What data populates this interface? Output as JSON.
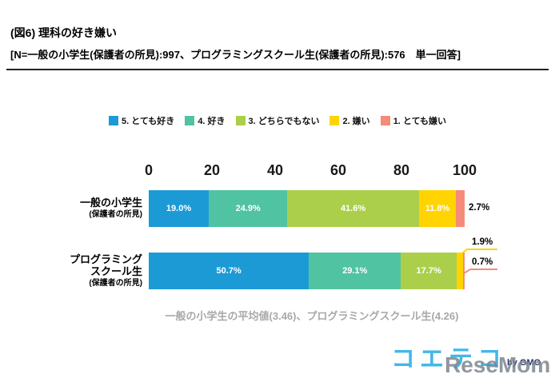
{
  "header": {
    "title": "(図6) 理科の好き嫌い",
    "subtitle": "[N=一般の小学生(保護者の所見):997、プログラミングスクール生(保護者の所見):576　単一回答]"
  },
  "legend": [
    {
      "label": "5. とても好き",
      "color": "#1C9AD6"
    },
    {
      "label": "4. 好き",
      "color": "#50C3A2"
    },
    {
      "label": "3. どちらでもない",
      "color": "#ABCF4A"
    },
    {
      "label": "2. 嫌い",
      "color": "#FFD400"
    },
    {
      "label": "1. とても嫌い",
      "color": "#F58B78"
    }
  ],
  "chart_data": {
    "type": "bar",
    "variant": "horizontal-stacked",
    "unit": "%",
    "x_ticks": [
      0,
      20,
      40,
      60,
      80,
      100
    ],
    "xlim": [
      0,
      100
    ],
    "series": [
      "5. とても好き",
      "4. 好き",
      "3. どちらでもない",
      "2. 嫌い",
      "1. とても嫌い"
    ],
    "colors": [
      "#1C9AD6",
      "#50C3A2",
      "#ABCF4A",
      "#FFD400",
      "#F58B78"
    ],
    "rows": [
      {
        "name": "一般の小学生",
        "sub": "(保護者の所見)",
        "values": [
          19.0,
          24.9,
          41.6,
          11.8,
          2.7
        ],
        "label_inside": [
          true,
          true,
          true,
          true,
          false
        ]
      },
      {
        "name": "プログラミング\nスクール生",
        "sub": "(保護者の所見)",
        "values": [
          50.7,
          29.1,
          17.7,
          1.9,
          0.7
        ],
        "label_inside": [
          true,
          true,
          true,
          false,
          false
        ]
      }
    ],
    "note": "一般の小学生の平均値(3.46)、プログラミングスクール生(4.26)"
  },
  "footer": {
    "logo_text": "コエテコ",
    "logo_by": "by GMO",
    "watermark": "ReseMom"
  }
}
